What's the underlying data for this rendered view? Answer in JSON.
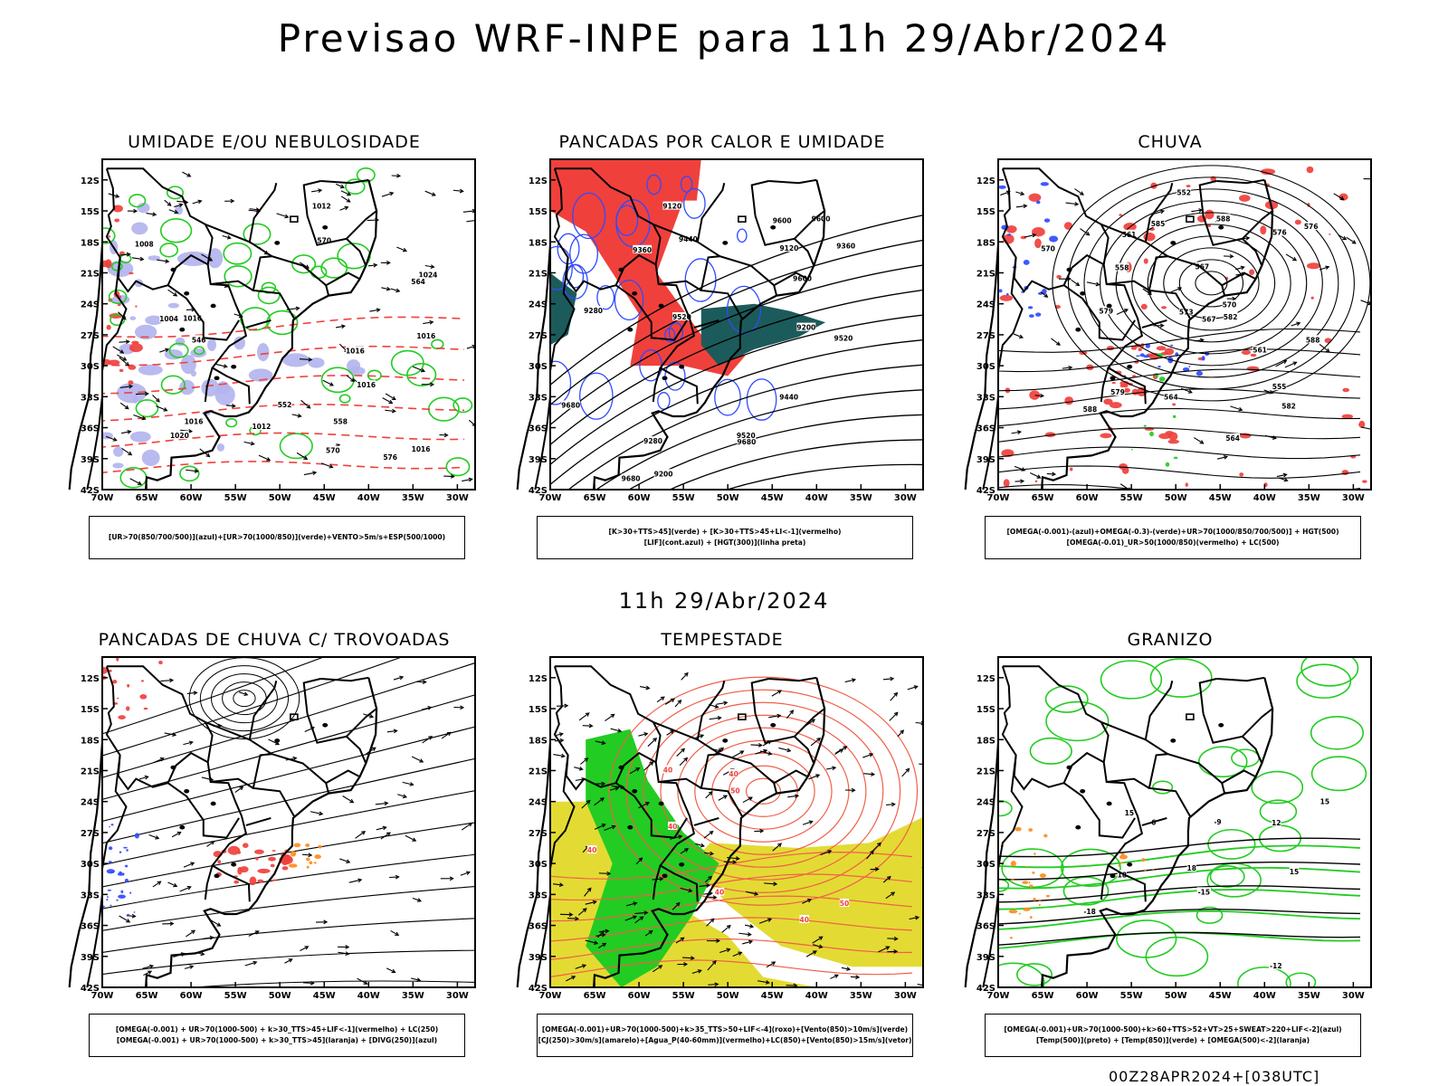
{
  "main_title": "Previsao WRF-INPE  para 11h 29/Abr/2024",
  "mid_title": "11h 29/Abr/2024",
  "footer": "00Z28APR2024+[038UTC]",
  "axes": {
    "lat_ticks": [
      "12S",
      "15S",
      "18S",
      "21S",
      "24S",
      "27S",
      "30S",
      "33S",
      "36S",
      "39S",
      "42S"
    ],
    "lon_ticks": [
      "70W",
      "65W",
      "60W",
      "55W",
      "50W",
      "45W",
      "40W",
      "35W",
      "30W"
    ]
  },
  "colors": {
    "red": "#f0403c",
    "green": "#22cc22",
    "blue": "#2f4bff",
    "lavender": "#b3b4ee",
    "yellow": "#e3db33",
    "darkgreen": "#1c5b5b",
    "orange": "#ff8c1c"
  },
  "panels": [
    {
      "title": "UMIDADE E/OU NEBULOSIDADE",
      "legend": [
        "[UR>70(850/700/500)](azul)+[UR>70(1000/850)](verde)+VENTO>5m/s+ESP(500/1000)"
      ],
      "labels": [
        "1016",
        "1016",
        "1016",
        "1012",
        "1012",
        "1016",
        "1016",
        "1020",
        "1016",
        "1008",
        "1004",
        "1024",
        "570",
        "576",
        "570",
        "564",
        "558",
        "552",
        "546"
      ]
    },
    {
      "title": "PANCADAS POR CALOR E UMIDADE",
      "legend": [
        "[K>30+TTS>45](verde) + [K>30+TTS>45+LI<-1](vermelho)",
        "[LIF](cont.azul) + [HGT(300)](linha preta)"
      ],
      "labels": [
        "9680",
        "9600",
        "9680",
        "9680",
        "9520",
        "9520",
        "9440",
        "9600",
        "9600",
        "9520",
        "9440",
        "9360",
        "9280",
        "9200",
        "9120",
        "9360",
        "9280",
        "9200",
        "9120"
      ]
    },
    {
      "title": "CHUVA",
      "legend": [
        "[OMEGA(-0.001)-(azul)+OMEGA(-0.3)-(verde)+UR>70(1000/850/700/500)] + HGT(500)",
        "[OMEGA(-0.01)_UR>50(1000/850)(vermelho) + LC(500)"
      ],
      "labels": [
        "588",
        "588",
        "588",
        "585",
        "582",
        "579",
        "576",
        "573",
        "570",
        "567",
        "564",
        "561",
        "582",
        "579",
        "576",
        "573",
        "570",
        "567",
        "564",
        "561",
        "558",
        "555",
        "552"
      ]
    },
    {
      "title": "PANCADAS DE CHUVA C/ TROVOADAS",
      "legend": [
        "[OMEGA(-0.001) + UR>70(1000-500) + k>30_TTS>45+LIF<-1](vermelho) + LC(250)",
        "[OMEGA(-0.001) + UR>70(1000-500) + k>30_TTS>45](laranja) + [DIVG(250)](azul)"
      ],
      "labels": []
    },
    {
      "title": "TEMPESTADE",
      "legend": [
        "[OMEGA(-0.001)+UR>70(1000-500)+k>35_TTS>50+LIF<-4](roxo)+[Vento(850)>10m/s](verde)",
        "[CJ(250)>30m/s](amarelo)+[Agua_P(40-60mm)](vermelho)+LC(850)+[Vento(850)>15m/s](vetor)"
      ],
      "labels": [
        "50",
        "50",
        "40",
        "40",
        "40",
        "40",
        "40",
        "40"
      ]
    },
    {
      "title": "GRANIZO",
      "legend": [
        "[OMEGA(-0.001)+UR>70(1000-500)+k>60+TTS>52+VT>25+SWEAT>220+LIF<-2](azul)",
        "[Temp(500)](preto) + [Temp(850)](verde) + [OMEGA(500)<-2](laranja)"
      ],
      "labels": [
        "15",
        "12",
        "15",
        "15",
        "18",
        "18",
        "-6",
        "-9",
        "-12",
        "-15",
        "-18"
      ]
    }
  ]
}
